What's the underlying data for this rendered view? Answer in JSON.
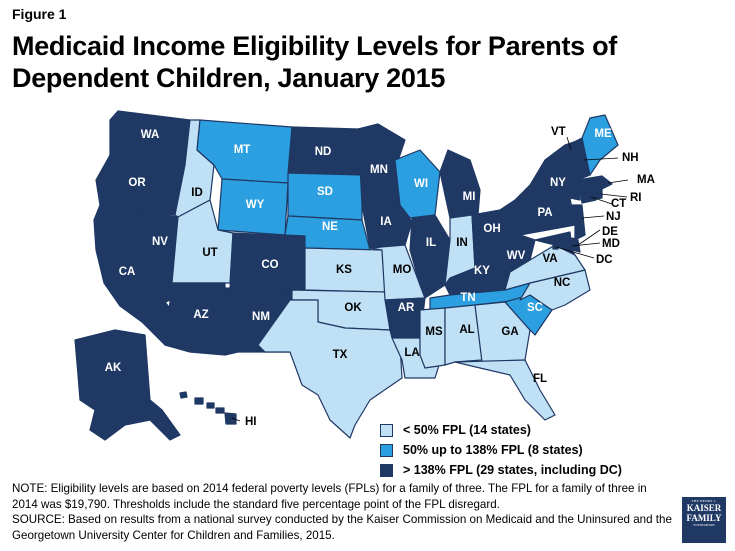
{
  "figure_label": "Figure 1",
  "title": "Medicaid Income Eligibility Levels for Parents of Dependent Children, January 2015",
  "colors": {
    "low": "#bfe0f5",
    "mid": "#2b9fe0",
    "high": "#1f3864",
    "border": "#1f3864"
  },
  "legend": [
    {
      "key": "low",
      "label": "< 50% FPL (14 states)"
    },
    {
      "key": "mid",
      "label": "50% up to 138% FPL (8 states)"
    },
    {
      "key": "high",
      "label": "> 138% FPL (29 states, including DC)"
    }
  ],
  "states": {
    "WA": "high",
    "OR": "high",
    "CA": "high",
    "NV": "high",
    "ID": "low",
    "MT": "mid",
    "WY": "mid",
    "UT": "low",
    "AZ": "high",
    "CO": "high",
    "NM": "high",
    "ND": "high",
    "SD": "mid",
    "NE": "mid",
    "KS": "low",
    "OK": "low",
    "TX": "low",
    "MN": "high",
    "IA": "high",
    "MO": "low",
    "AR": "high",
    "LA": "low",
    "WI": "mid",
    "IL": "high",
    "MI": "high",
    "IN": "low",
    "OH": "high",
    "KY": "high",
    "TN": "mid",
    "MS": "low",
    "AL": "low",
    "GA": "low",
    "FL": "low",
    "SC": "mid",
    "NC": "low",
    "VA": "low",
    "WV": "high",
    "PA": "high",
    "NY": "high",
    "ME": "mid",
    "VT": "high",
    "NH": "high",
    "MA": "high",
    "RI": "high",
    "CT": "high",
    "NJ": "high",
    "DE": "high",
    "MD": "high",
    "DC": "high",
    "AK": "high",
    "HI": "high"
  },
  "note": "NOTE: Eligibility levels are based on 2014 federal poverty levels (FPLs) for a family of three. The FPL for a family of three in 2014 was $19,790. Thresholds include the standard five percentage point of the FPL disregard.",
  "source": "SOURCE: Based on results from a national survey conducted by the Kaiser Commission on Medicaid and the Uninsured and the Georgetown University Center for Children and Families, 2015.",
  "logo": {
    "line1": "THE HENRY J.",
    "line2": "KAISER",
    "line3": "FAMILY",
    "line4": "FOUNDATION"
  }
}
